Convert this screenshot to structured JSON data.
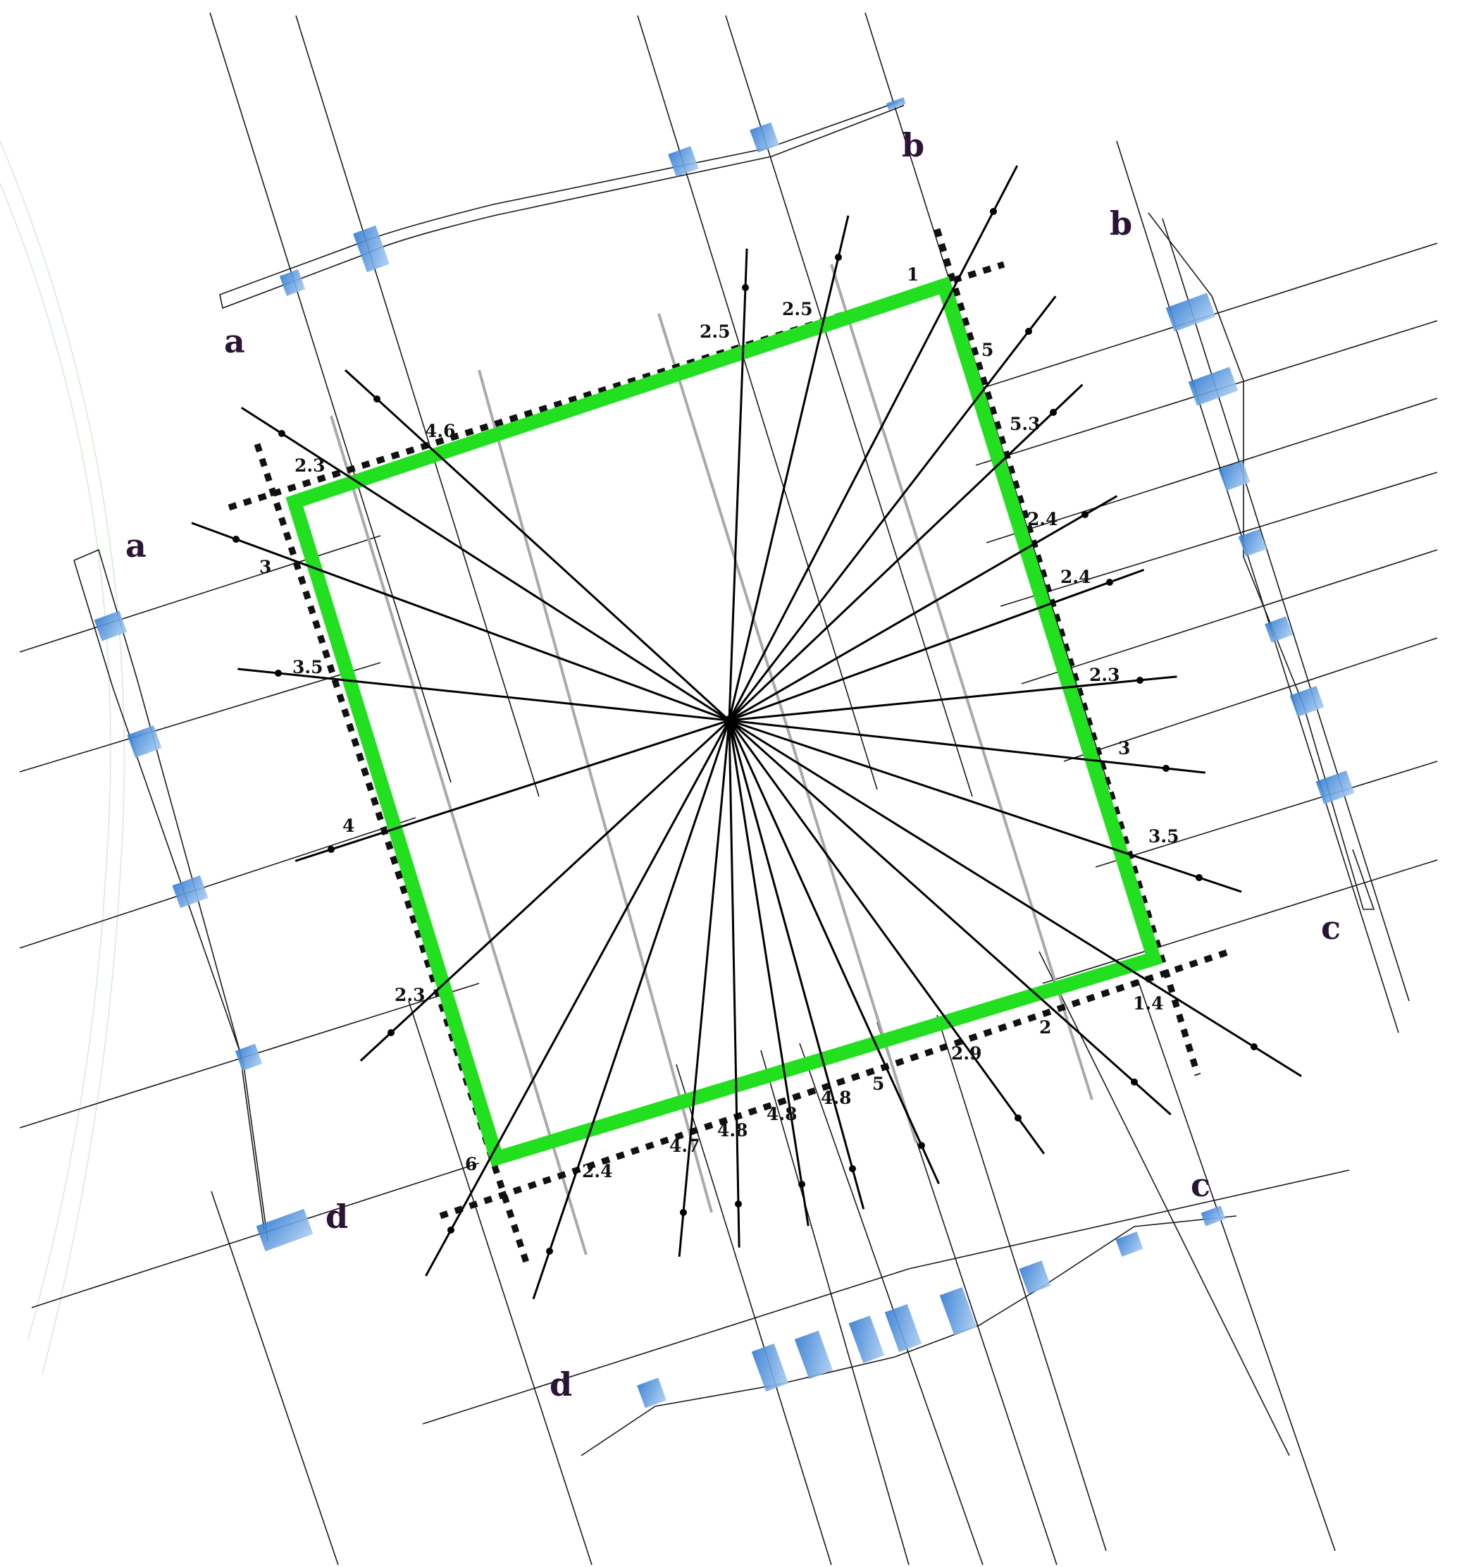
{
  "colors": {
    "boundary": "#22e01f",
    "crosswalk": "#4a8fd8",
    "line": "#111111",
    "grey_line": "#a9a9a9",
    "corner_letters": "#2b1436"
  },
  "corner_labels": [
    "a",
    "a",
    "b",
    "b",
    "c",
    "c",
    "d",
    "d"
  ],
  "ray_labels": {
    "top": [
      "1",
      "2.5",
      "2.5",
      "4.6",
      "2.3"
    ],
    "left": [
      "3",
      "3.5",
      "4",
      "2.3",
      "6"
    ],
    "bottom": [
      "2.4",
      "4.7",
      "4.8",
      "4.8",
      "4.8",
      "5",
      "2.9",
      "2",
      "1.4"
    ],
    "right": [
      "5",
      "5.3",
      "2.4",
      "2.4",
      "2.3",
      "3",
      "3.5"
    ]
  }
}
